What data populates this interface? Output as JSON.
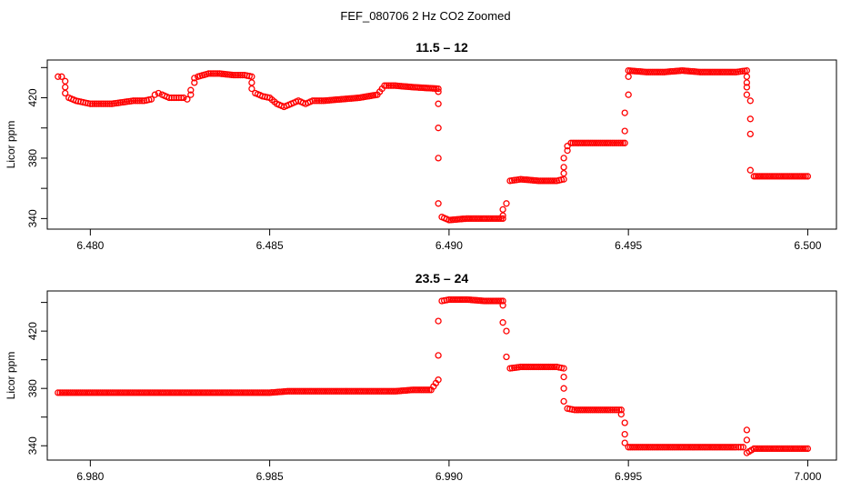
{
  "figure": {
    "title": "FEF_080706  2 Hz CO2 Zoomed"
  },
  "chart_data": [
    {
      "type": "scatter",
      "title": "11.5 – 12",
      "xlabel": "",
      "ylabel": "Licor ppm",
      "xlim": [
        6.4788,
        6.5008
      ],
      "ylim": [
        333,
        445
      ],
      "xticks": [
        6.48,
        6.485,
        6.49,
        6.495,
        6.5
      ],
      "xtick_labels": [
        "6.480",
        "6.485",
        "6.490",
        "6.495",
        "6.500"
      ],
      "yticks": [
        340,
        360,
        380,
        400,
        420,
        440
      ],
      "ytick_labels": [
        "340",
        "",
        "380",
        "",
        "420",
        ""
      ],
      "grid": false,
      "marker": "open-circle",
      "color": "#ff0000",
      "series": [
        {
          "points": [
            [
              6.4791,
              434
            ],
            [
              6.4792,
              434
            ],
            [
              6.4793,
              431
            ],
            [
              6.4793,
              427
            ],
            [
              6.4793,
              423
            ],
            [
              6.4794,
              420
            ],
            [
              6.4796,
              418
            ],
            [
              6.4798,
              417
            ],
            [
              6.48,
              416
            ],
            [
              6.4803,
              416
            ],
            [
              6.4806,
              416
            ],
            [
              6.4809,
              417
            ],
            [
              6.4812,
              418
            ],
            [
              6.4815,
              418
            ],
            [
              6.4817,
              419
            ],
            [
              6.4818,
              422
            ],
            [
              6.4819,
              423
            ],
            [
              6.482,
              422
            ],
            [
              6.4822,
              420
            ],
            [
              6.4824,
              420
            ],
            [
              6.4826,
              420
            ],
            [
              6.4827,
              419
            ],
            [
              6.4828,
              422
            ],
            [
              6.4828,
              425
            ],
            [
              6.4829,
              430
            ],
            [
              6.4829,
              433
            ],
            [
              6.483,
              434
            ],
            [
              6.4833,
              436
            ],
            [
              6.4836,
              436
            ],
            [
              6.484,
              435
            ],
            [
              6.4843,
              435
            ],
            [
              6.4845,
              434
            ],
            [
              6.4845,
              430
            ],
            [
              6.4845,
              426
            ],
            [
              6.4846,
              423
            ],
            [
              6.4848,
              421
            ],
            [
              6.485,
              420
            ],
            [
              6.4852,
              416
            ],
            [
              6.4854,
              414
            ],
            [
              6.4856,
              416
            ],
            [
              6.4858,
              418
            ],
            [
              6.486,
              416
            ],
            [
              6.4862,
              418
            ],
            [
              6.4865,
              418
            ],
            [
              6.487,
              419
            ],
            [
              6.4875,
              420
            ],
            [
              6.488,
              422
            ],
            [
              6.4882,
              428
            ],
            [
              6.4885,
              428
            ],
            [
              6.489,
              427
            ],
            [
              6.4897,
              426
            ],
            [
              6.4897,
              424
            ],
            [
              6.4897,
              416
            ],
            [
              6.4897,
              400
            ],
            [
              6.4897,
              380
            ],
            [
              6.4897,
              350
            ],
            [
              6.4898,
              341
            ],
            [
              6.49,
              339
            ],
            [
              6.4905,
              340
            ],
            [
              6.491,
              340
            ],
            [
              6.4915,
              340
            ],
            [
              6.4915,
              342
            ],
            [
              6.4915,
              346
            ],
            [
              6.4916,
              350
            ],
            [
              6.4917,
              365
            ],
            [
              6.492,
              366
            ],
            [
              6.4925,
              365
            ],
            [
              6.493,
              365
            ],
            [
              6.4932,
              366
            ],
            [
              6.4932,
              370
            ],
            [
              6.4932,
              374
            ],
            [
              6.4932,
              380
            ],
            [
              6.4933,
              385
            ],
            [
              6.4933,
              388
            ],
            [
              6.4934,
              390
            ],
            [
              6.494,
              390
            ],
            [
              6.4945,
              390
            ],
            [
              6.4949,
              390
            ],
            [
              6.4949,
              398
            ],
            [
              6.4949,
              410
            ],
            [
              6.495,
              422
            ],
            [
              6.495,
              434
            ],
            [
              6.495,
              438
            ],
            [
              6.4955,
              437
            ],
            [
              6.496,
              437
            ],
            [
              6.4965,
              438
            ],
            [
              6.497,
              437
            ],
            [
              6.4975,
              437
            ],
            [
              6.498,
              437
            ],
            [
              6.4983,
              438
            ],
            [
              6.4983,
              434
            ],
            [
              6.4983,
              430
            ],
            [
              6.4983,
              427
            ],
            [
              6.4983,
              422
            ],
            [
              6.4984,
              418
            ],
            [
              6.4984,
              406
            ],
            [
              6.4984,
              396
            ],
            [
              6.4984,
              372
            ],
            [
              6.4985,
              368
            ],
            [
              6.499,
              368
            ],
            [
              6.4995,
              368
            ],
            [
              6.5,
              368
            ]
          ]
        }
      ]
    },
    {
      "type": "scatter",
      "title": "23.5 – 24",
      "xlabel": "",
      "ylabel": "Licor ppm",
      "xlim": [
        6.9788,
        7.0008
      ],
      "ylim": [
        330,
        448
      ],
      "xticks": [
        6.98,
        6.985,
        6.99,
        6.995,
        7.0
      ],
      "xtick_labels": [
        "6.980",
        "6.985",
        "6.990",
        "6.995",
        "7.000"
      ],
      "yticks": [
        340,
        360,
        380,
        400,
        420,
        440
      ],
      "ytick_labels": [
        "340",
        "",
        "380",
        "",
        "420",
        ""
      ],
      "grid": false,
      "marker": "open-circle",
      "color": "#ff0000",
      "series": [
        {
          "points": [
            [
              6.9791,
              377
            ],
            [
              6.9795,
              377
            ],
            [
              6.98,
              377
            ],
            [
              6.9805,
              377
            ],
            [
              6.981,
              377
            ],
            [
              6.9815,
              377
            ],
            [
              6.982,
              377
            ],
            [
              6.9825,
              377
            ],
            [
              6.983,
              377
            ],
            [
              6.9835,
              377
            ],
            [
              6.984,
              377
            ],
            [
              6.9845,
              377
            ],
            [
              6.985,
              377
            ],
            [
              6.9855,
              378
            ],
            [
              6.986,
              378
            ],
            [
              6.9865,
              378
            ],
            [
              6.987,
              378
            ],
            [
              6.9875,
              378
            ],
            [
              6.988,
              378
            ],
            [
              6.9885,
              378
            ],
            [
              6.989,
              379
            ],
            [
              6.9895,
              379
            ],
            [
              6.9897,
              386
            ],
            [
              6.9897,
              403
            ],
            [
              6.9897,
              427
            ],
            [
              6.9898,
              441
            ],
            [
              6.99,
              442
            ],
            [
              6.9905,
              442
            ],
            [
              6.991,
              441
            ],
            [
              6.9915,
              441
            ],
            [
              6.9915,
              438
            ],
            [
              6.9915,
              426
            ],
            [
              6.9916,
              420
            ],
            [
              6.9916,
              402
            ],
            [
              6.9917,
              394
            ],
            [
              6.992,
              395
            ],
            [
              6.9925,
              395
            ],
            [
              6.993,
              395
            ],
            [
              6.9932,
              394
            ],
            [
              6.9932,
              388
            ],
            [
              6.9932,
              380
            ],
            [
              6.9932,
              371
            ],
            [
              6.9933,
              366
            ],
            [
              6.9935,
              365
            ],
            [
              6.994,
              365
            ],
            [
              6.9945,
              365
            ],
            [
              6.9948,
              365
            ],
            [
              6.9948,
              362
            ],
            [
              6.9949,
              356
            ],
            [
              6.9949,
              348
            ],
            [
              6.9949,
              342
            ],
            [
              6.995,
              339
            ],
            [
              6.9955,
              339
            ],
            [
              6.996,
              339
            ],
            [
              6.9965,
              339
            ],
            [
              6.997,
              339
            ],
            [
              6.9975,
              339
            ],
            [
              6.998,
              339
            ],
            [
              6.9982,
              339
            ],
            [
              6.9983,
              351
            ],
            [
              6.9983,
              344
            ],
            [
              6.9983,
              335
            ],
            [
              6.9985,
              338
            ],
            [
              6.999,
              338
            ],
            [
              6.9995,
              338
            ],
            [
              7.0,
              338
            ]
          ]
        }
      ]
    }
  ]
}
